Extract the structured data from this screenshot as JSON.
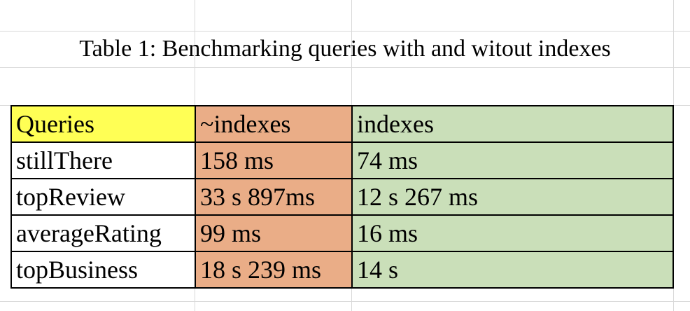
{
  "title": "Table 1: Benchmarking queries with and witout indexes",
  "table": {
    "headers": [
      "Queries",
      "~indexes",
      "indexes"
    ],
    "rows": [
      {
        "query": "stillThere",
        "without_indexes": "158 ms",
        "with_indexes": "74 ms"
      },
      {
        "query": "topReview",
        "without_indexes": "33 s 897ms",
        "with_indexes": "12 s 267 ms"
      },
      {
        "query": "averageRating",
        "without_indexes": "99 ms",
        "with_indexes": "16 ms"
      },
      {
        "query": "topBusiness",
        "without_indexes": "18 s 239 ms",
        "with_indexes": "14 s"
      }
    ]
  },
  "colors": {
    "header_queries": "#ffff55",
    "without_indexes": "#eaad87",
    "with_indexes": "#cadfb9",
    "gridline": "#d9d9d9"
  }
}
